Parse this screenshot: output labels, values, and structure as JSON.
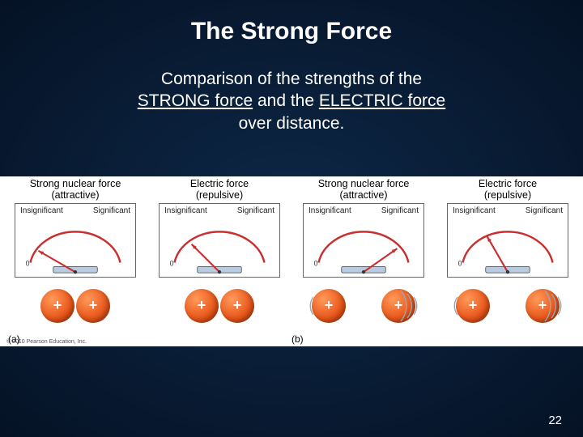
{
  "slide": {
    "title": "The Strong Force",
    "subtitle_l1": "Comparison of the strengths of the",
    "subtitle_strong": "STRONG force",
    "subtitle_mid": " and the ",
    "subtitle_elec": "ELECTRIC force",
    "subtitle_l3": "over distance.",
    "number": "22"
  },
  "gauge_shared": {
    "label_left": "Insignificant",
    "label_right": "Significant",
    "zero": "0",
    "arc_color": "#c92f2f",
    "needle_color": "#c92f2f",
    "base_color": "#b9cbe0",
    "base_border": "#444"
  },
  "panels": [
    {
      "title_line1": "Strong nuclear force",
      "title_line2": "(attractive)",
      "needle_angle": 30,
      "needle_len": 54
    },
    {
      "title_line1": "Electric force",
      "title_line2": "(repulsive)",
      "needle_angle": 45,
      "needle_len": 50
    },
    {
      "title_line1": "Strong nuclear force",
      "title_line2": "(attractive)",
      "needle_angle": 145,
      "needle_len": 52
    },
    {
      "title_line1": "Electric  force",
      "title_line2": "(repulsive)",
      "needle_angle": 60,
      "needle_len": 52
    }
  ],
  "groups": [
    {
      "label": "(a)",
      "gap": 2,
      "motion": "none"
    },
    {
      "label": "(b)",
      "gap": 44,
      "motion": "apart"
    }
  ],
  "proton": {
    "fill_light": "#ff9a5a",
    "fill_mid": "#e8561a",
    "fill_dark": "#b5390a",
    "symbol": "+"
  },
  "copyright": "© 2010 Pearson Education, Inc."
}
